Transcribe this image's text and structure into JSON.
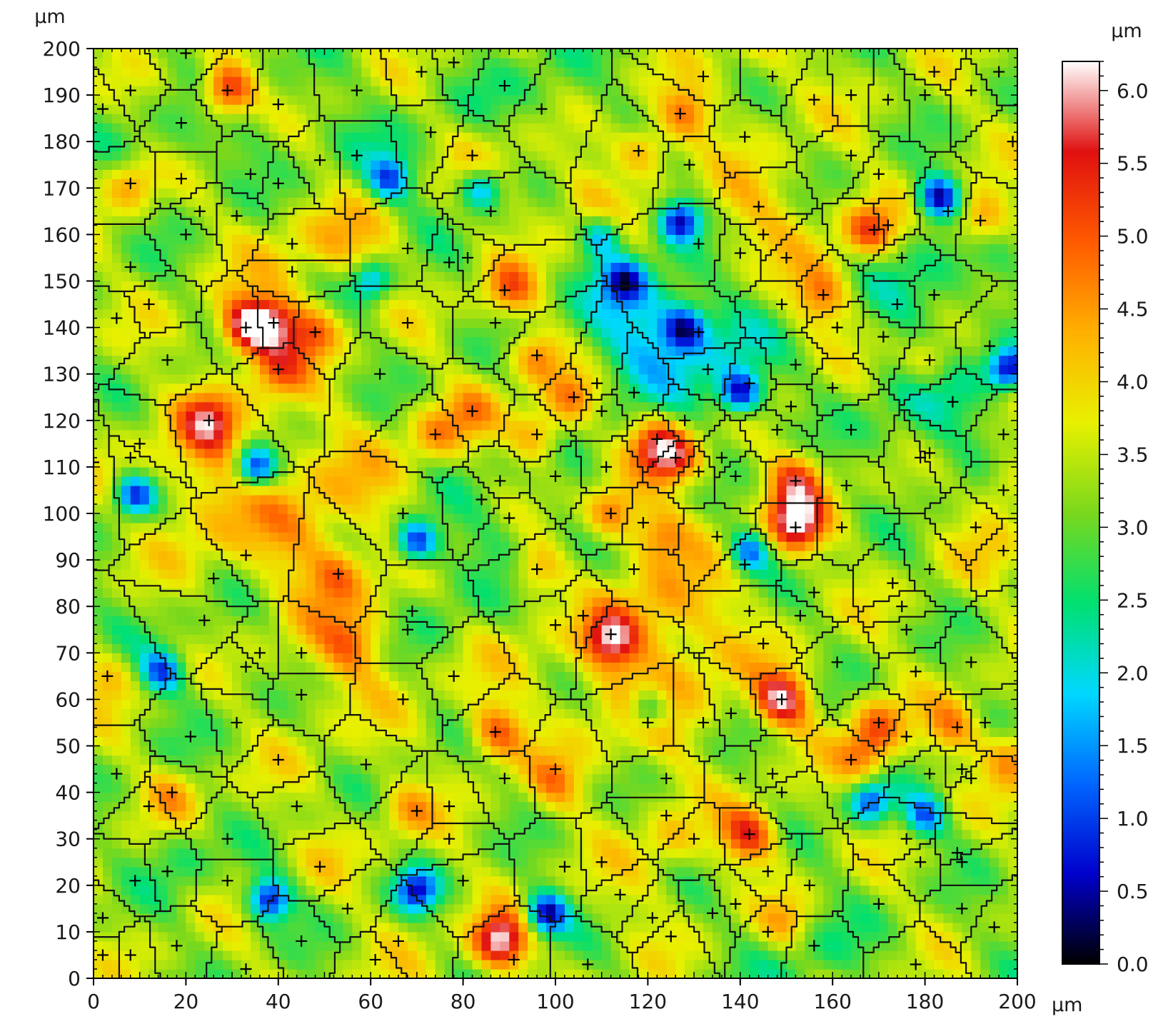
{
  "chart_data": {
    "type": "heatmap",
    "title": "",
    "x_unit_label": "µm",
    "y_unit_label": "µm",
    "xlim": [
      0,
      200
    ],
    "ylim": [
      0,
      200
    ],
    "x_ticks": [
      "0",
      "20",
      "40",
      "60",
      "80",
      "100",
      "120",
      "140",
      "160",
      "180",
      "200"
    ],
    "y_ticks": [
      "0",
      "10",
      "20",
      "30",
      "40",
      "50",
      "60",
      "70",
      "80",
      "90",
      "100",
      "110",
      "120",
      "130",
      "140",
      "150",
      "160",
      "170",
      "180",
      "190",
      "200"
    ],
    "colorbar": {
      "unit_label": "µm",
      "range": [
        0.0,
        6.2
      ],
      "ticks": [
        "0.0",
        "0.5",
        "1.0",
        "1.5",
        "2.0",
        "2.5",
        "3.0",
        "3.5",
        "4.0",
        "4.5",
        "5.0",
        "5.5",
        "6.0"
      ],
      "colormap": [
        "#000000",
        "#0000cc",
        "#0066ff",
        "#00d8ff",
        "#00e070",
        "#7ad81c",
        "#e8f000",
        "#ffb000",
        "#ff5a00",
        "#e01010",
        "#ffffff"
      ]
    },
    "hotspots": [
      {
        "x": 29,
        "y": 191,
        "z": 5.9
      },
      {
        "x": 33,
        "y": 140,
        "z": 5.9
      },
      {
        "x": 39,
        "y": 141,
        "z": 5.2
      },
      {
        "x": 25,
        "y": 120,
        "z": 5.0
      },
      {
        "x": 8,
        "y": 171,
        "z": 4.6
      },
      {
        "x": 119,
        "y": 178,
        "z": 4.8
      },
      {
        "x": 128,
        "y": 186,
        "z": 4.9
      },
      {
        "x": 168,
        "y": 161,
        "z": 5.1
      },
      {
        "x": 192,
        "y": 163,
        "z": 5.0
      },
      {
        "x": 48,
        "y": 139,
        "z": 4.9
      },
      {
        "x": 90,
        "y": 148,
        "z": 4.8
      },
      {
        "x": 96,
        "y": 134,
        "z": 4.8
      },
      {
        "x": 104,
        "y": 125,
        "z": 4.9
      },
      {
        "x": 96,
        "y": 117,
        "z": 4.8
      },
      {
        "x": 122,
        "y": 115,
        "z": 5.0
      },
      {
        "x": 126,
        "y": 112,
        "z": 5.0
      },
      {
        "x": 112,
        "y": 100,
        "z": 5.2
      },
      {
        "x": 152,
        "y": 107,
        "z": 5.0
      },
      {
        "x": 152,
        "y": 98,
        "z": 5.9
      },
      {
        "x": 96,
        "y": 88,
        "z": 4.8
      },
      {
        "x": 112,
        "y": 73,
        "z": 5.5
      },
      {
        "x": 149,
        "y": 60,
        "z": 5.9
      },
      {
        "x": 87,
        "y": 53,
        "z": 5.0
      },
      {
        "x": 88,
        "y": 8,
        "z": 6.1
      },
      {
        "x": 142,
        "y": 31,
        "z": 5.3
      },
      {
        "x": 167,
        "y": 48,
        "z": 4.6
      },
      {
        "x": 170,
        "y": 55,
        "z": 4.7
      },
      {
        "x": 53,
        "y": 87,
        "z": 4.4
      },
      {
        "x": 56,
        "y": 72,
        "z": 4.2
      },
      {
        "x": 181,
        "y": 133,
        "z": 4.6
      },
      {
        "x": 3,
        "y": 65,
        "z": 4.3
      },
      {
        "x": 17,
        "y": 40,
        "z": 4.2
      },
      {
        "x": 150,
        "y": 12,
        "z": 4.4
      },
      {
        "x": 74,
        "y": 117,
        "z": 4.4
      },
      {
        "x": 158,
        "y": 147,
        "z": 4.5
      },
      {
        "x": 199,
        "y": 48,
        "z": 4.8
      },
      {
        "x": 186,
        "y": 54,
        "z": 4.4
      },
      {
        "x": 122,
        "y": 95,
        "z": 4.5
      },
      {
        "x": 197,
        "y": 106,
        "z": 4.3
      },
      {
        "x": 40,
        "y": 131,
        "z": 4.6
      },
      {
        "x": 82,
        "y": 122,
        "z": 4.2
      },
      {
        "x": 68,
        "y": 36,
        "z": 4.2
      },
      {
        "x": 100,
        "y": 42,
        "z": 4.3
      },
      {
        "x": 125,
        "y": 30,
        "z": 4.0
      }
    ],
    "lows": [
      {
        "x": 183,
        "y": 168,
        "z": 0.5
      },
      {
        "x": 127,
        "y": 163,
        "z": 0.6
      },
      {
        "x": 198,
        "y": 131,
        "z": 0.5
      },
      {
        "x": 140,
        "y": 126,
        "z": 0.7
      },
      {
        "x": 128,
        "y": 140,
        "z": 1.2
      },
      {
        "x": 35,
        "y": 110,
        "z": 0.6
      },
      {
        "x": 9,
        "y": 104,
        "z": 0.8
      },
      {
        "x": 70,
        "y": 94,
        "z": 0.7
      },
      {
        "x": 38,
        "y": 17,
        "z": 0.6
      },
      {
        "x": 98,
        "y": 14,
        "z": 0.5
      },
      {
        "x": 70,
        "y": 19,
        "z": 1.0
      },
      {
        "x": 142,
        "y": 92,
        "z": 1.3
      },
      {
        "x": 64,
        "y": 172,
        "z": 1.4
      },
      {
        "x": 84,
        "y": 170,
        "z": 1.3
      },
      {
        "x": 115,
        "y": 150,
        "z": 1.3
      },
      {
        "x": 180,
        "y": 35,
        "z": 1.3
      },
      {
        "x": 168,
        "y": 38,
        "z": 1.0
      },
      {
        "x": 15,
        "y": 66,
        "z": 1.2
      },
      {
        "x": 110,
        "y": 160,
        "z": 1.6
      },
      {
        "x": 60,
        "y": 150,
        "z": 1.5
      },
      {
        "x": 120,
        "y": 58,
        "z": 1.5
      }
    ],
    "base_level": 3.3,
    "seed_markers": [
      [
        2,
        187
      ],
      [
        8,
        191
      ],
      [
        19,
        184
      ],
      [
        20,
        199
      ],
      [
        29,
        191
      ],
      [
        40,
        188
      ],
      [
        57,
        191
      ],
      [
        71,
        195
      ],
      [
        78,
        197
      ],
      [
        89,
        192
      ],
      [
        97,
        187
      ],
      [
        127,
        186
      ],
      [
        132,
        194
      ],
      [
        147,
        194
      ],
      [
        156,
        189
      ],
      [
        164,
        190
      ],
      [
        172,
        189
      ],
      [
        180,
        190
      ],
      [
        182,
        195
      ],
      [
        190,
        191
      ],
      [
        196,
        195
      ],
      [
        199,
        180
      ],
      [
        8,
        171
      ],
      [
        19,
        172
      ],
      [
        23,
        165
      ],
      [
        20,
        160
      ],
      [
        31,
        164
      ],
      [
        34,
        173
      ],
      [
        40,
        171
      ],
      [
        49,
        176
      ],
      [
        57,
        177
      ],
      [
        73,
        182
      ],
      [
        82,
        177
      ],
      [
        86,
        165
      ],
      [
        118,
        178
      ],
      [
        129,
        175
      ],
      [
        141,
        181
      ],
      [
        144,
        166
      ],
      [
        145,
        160
      ],
      [
        164,
        177
      ],
      [
        170,
        173
      ],
      [
        169,
        161
      ],
      [
        172,
        162
      ],
      [
        192,
        163
      ],
      [
        185,
        165
      ],
      [
        8,
        153
      ],
      [
        12,
        145
      ],
      [
        5,
        142
      ],
      [
        16,
        133
      ],
      [
        33,
        140
      ],
      [
        39,
        141
      ],
      [
        40,
        131
      ],
      [
        48,
        139
      ],
      [
        43,
        158
      ],
      [
        43,
        152
      ],
      [
        68,
        157
      ],
      [
        77,
        154
      ],
      [
        81,
        155
      ],
      [
        89,
        148
      ],
      [
        87,
        141
      ],
      [
        96,
        134
      ],
      [
        131,
        158
      ],
      [
        140,
        156
      ],
      [
        150,
        155
      ],
      [
        158,
        147
      ],
      [
        161,
        140
      ],
      [
        149,
        145
      ],
      [
        131,
        139
      ],
      [
        133,
        131
      ],
      [
        142,
        128
      ],
      [
        152,
        132
      ],
      [
        160,
        127
      ],
      [
        164,
        118
      ],
      [
        171,
        138
      ],
      [
        174,
        145
      ],
      [
        175,
        155
      ],
      [
        182,
        147
      ],
      [
        181,
        133
      ],
      [
        186,
        124
      ],
      [
        194,
        136
      ],
      [
        25,
        120
      ],
      [
        10,
        115
      ],
      [
        8,
        112
      ],
      [
        0,
        111
      ],
      [
        62,
        130
      ],
      [
        68,
        141
      ],
      [
        74,
        117
      ],
      [
        82,
        122
      ],
      [
        96,
        117
      ],
      [
        104,
        125
      ],
      [
        109,
        128
      ],
      [
        110,
        122
      ],
      [
        117,
        126
      ],
      [
        122,
        116
      ],
      [
        126,
        112
      ],
      [
        128,
        120
      ],
      [
        119,
        98
      ],
      [
        131,
        109
      ],
      [
        136,
        112
      ],
      [
        139,
        108
      ],
      [
        148,
        118
      ],
      [
        151,
        123
      ],
      [
        152,
        107
      ],
      [
        163,
        106
      ],
      [
        162,
        97
      ],
      [
        152,
        97
      ],
      [
        135,
        95
      ],
      [
        141,
        89
      ],
      [
        111,
        110
      ],
      [
        100,
        108
      ],
      [
        88,
        107
      ],
      [
        84,
        103
      ],
      [
        90,
        99
      ],
      [
        112,
        100
      ],
      [
        67,
        100
      ],
      [
        33,
        91
      ],
      [
        53,
        87
      ],
      [
        26,
        86
      ],
      [
        24,
        77
      ],
      [
        96,
        88
      ],
      [
        100,
        76
      ],
      [
        106,
        78
      ],
      [
        112,
        74
      ],
      [
        117,
        88
      ],
      [
        142,
        79
      ],
      [
        145,
        72
      ],
      [
        153,
        78
      ],
      [
        156,
        83
      ],
      [
        161,
        68
      ],
      [
        173,
        85
      ],
      [
        175,
        80
      ],
      [
        176,
        75
      ],
      [
        178,
        66
      ],
      [
        179,
        112
      ],
      [
        181,
        113
      ],
      [
        191,
        97
      ],
      [
        197,
        105
      ],
      [
        197,
        92
      ],
      [
        197,
        117
      ],
      [
        202,
        78
      ],
      [
        181,
        88
      ],
      [
        190,
        68
      ],
      [
        3,
        65
      ],
      [
        33,
        67
      ],
      [
        36,
        70
      ],
      [
        45,
        70
      ],
      [
        45,
        61
      ],
      [
        31,
        55
      ],
      [
        21,
        52
      ],
      [
        40,
        47
      ],
      [
        44,
        37
      ],
      [
        59,
        46
      ],
      [
        67,
        60
      ],
      [
        69,
        79
      ],
      [
        68,
        75
      ],
      [
        78,
        65
      ],
      [
        87,
        53
      ],
      [
        89,
        43
      ],
      [
        100,
        45
      ],
      [
        120,
        55
      ],
      [
        132,
        55
      ],
      [
        138,
        57
      ],
      [
        124,
        43
      ],
      [
        124,
        35
      ],
      [
        130,
        30
      ],
      [
        140,
        43
      ],
      [
        147,
        44
      ],
      [
        149,
        40
      ],
      [
        142,
        31
      ],
      [
        149,
        60
      ],
      [
        164,
        47
      ],
      [
        170,
        55
      ],
      [
        176,
        52
      ],
      [
        181,
        44
      ],
      [
        187,
        54
      ],
      [
        188,
        45
      ],
      [
        190,
        43
      ],
      [
        193,
        55
      ],
      [
        5,
        44
      ],
      [
        12,
        37
      ],
      [
        17,
        40
      ],
      [
        29,
        30
      ],
      [
        29,
        21
      ],
      [
        16,
        23
      ],
      [
        9,
        21
      ],
      [
        2,
        13
      ],
      [
        2,
        5
      ],
      [
        8,
        5
      ],
      [
        18,
        7
      ],
      [
        33,
        2
      ],
      [
        45,
        8
      ],
      [
        49,
        24
      ],
      [
        55,
        15
      ],
      [
        61,
        4
      ],
      [
        66,
        8
      ],
      [
        70,
        36
      ],
      [
        77,
        37
      ],
      [
        77,
        30
      ],
      [
        80,
        21
      ],
      [
        91,
        4
      ],
      [
        102,
        24
      ],
      [
        107,
        3
      ],
      [
        110,
        25
      ],
      [
        114,
        18
      ],
      [
        121,
        13
      ],
      [
        125,
        9
      ],
      [
        134,
        14
      ],
      [
        139,
        16
      ],
      [
        146,
        23
      ],
      [
        146,
        10
      ],
      [
        155,
        20
      ],
      [
        156,
        7
      ],
      [
        170,
        16
      ],
      [
        176,
        30
      ],
      [
        178,
        3
      ],
      [
        179,
        25
      ],
      [
        187,
        27
      ],
      [
        188,
        25
      ],
      [
        188,
        15
      ],
      [
        195,
        11
      ]
    ]
  }
}
